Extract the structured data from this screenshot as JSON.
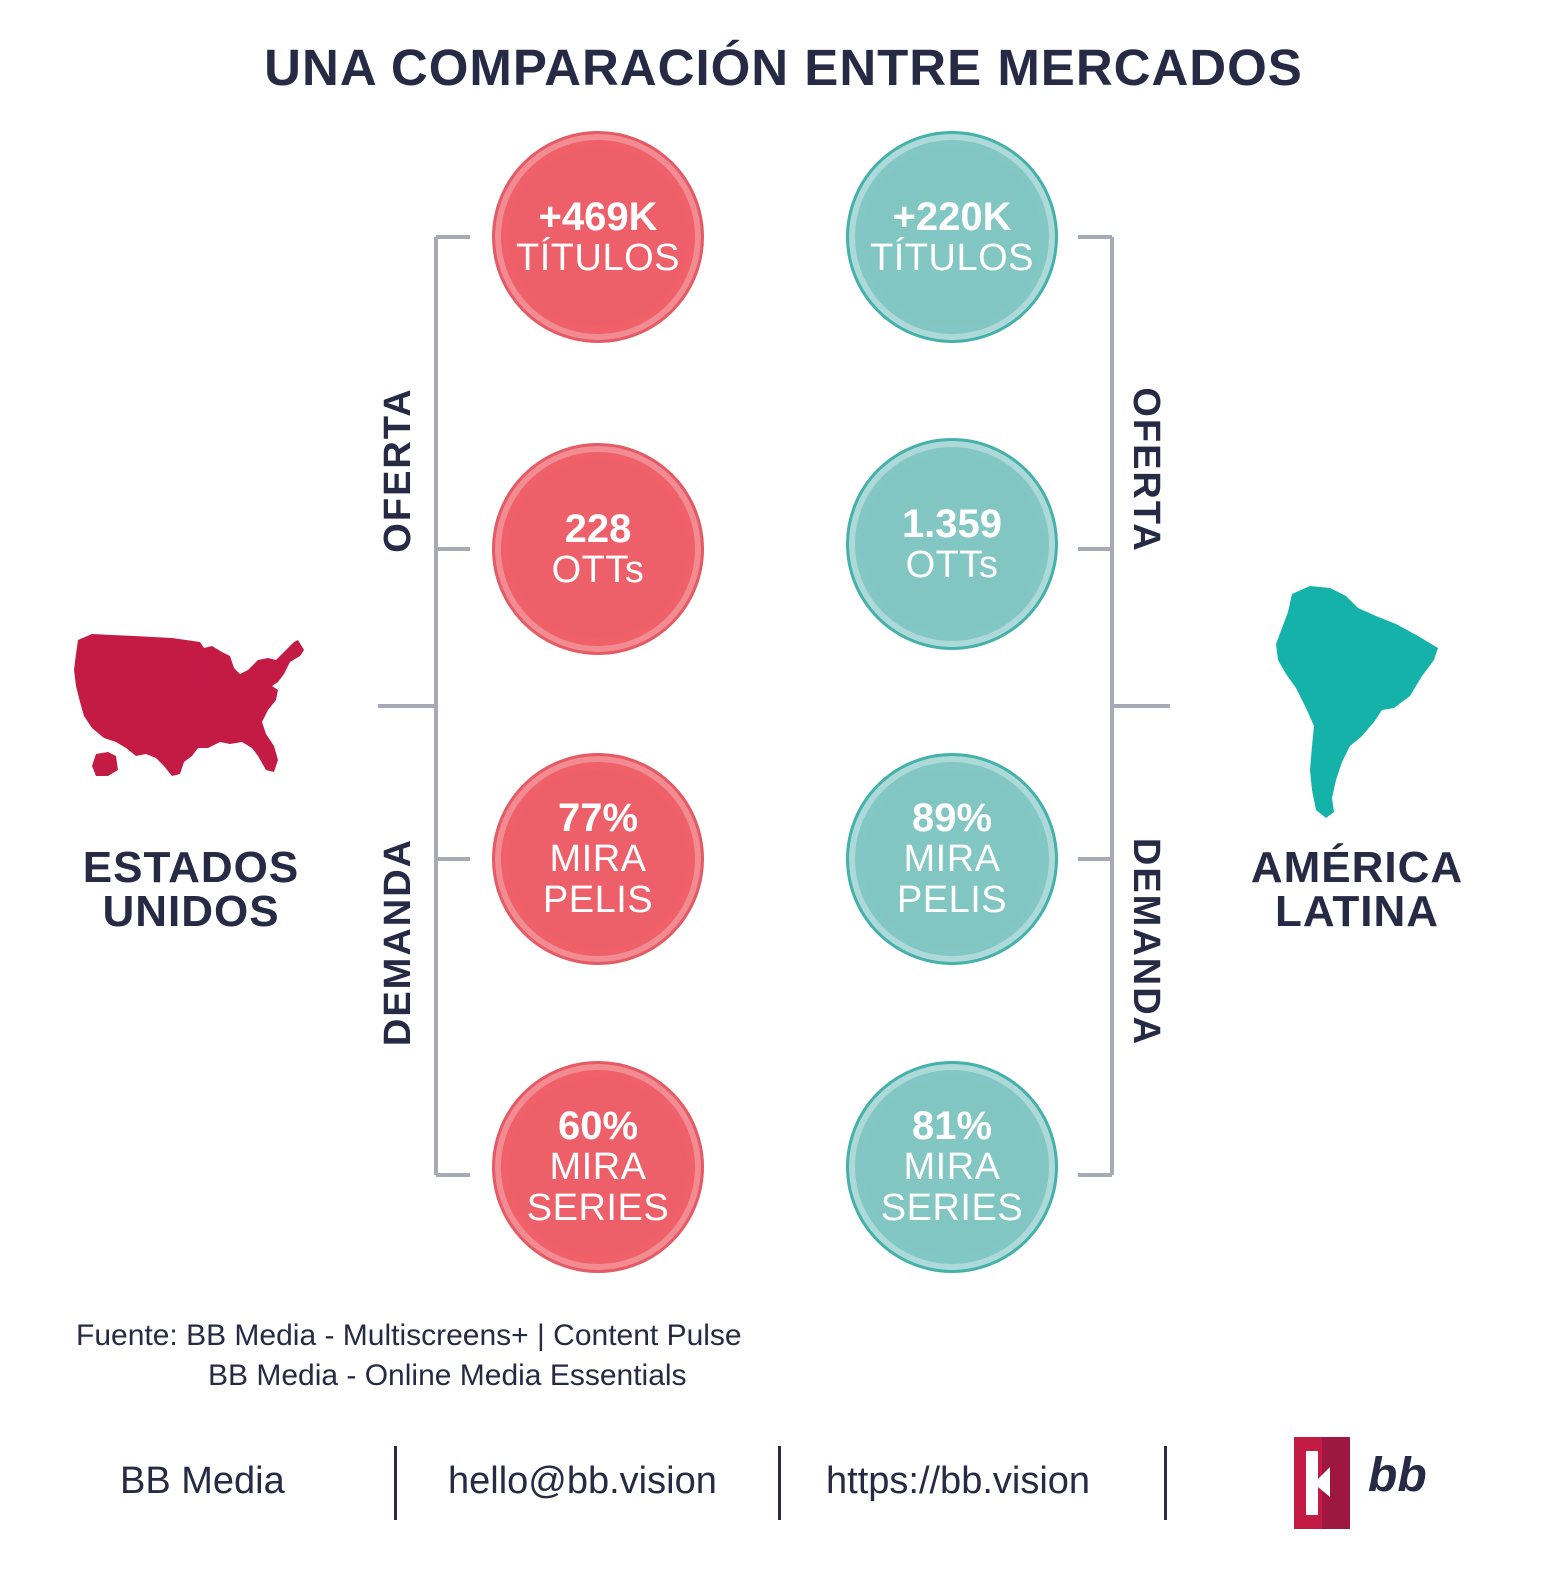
{
  "title": "UNA COMPARACIÓN ENTRE MERCADOS",
  "colors": {
    "us_accent": "#c41b45",
    "latam_accent": "#15b2aa",
    "us_circle": "#ed5f69",
    "latam_circle": "#81c6c2",
    "text": "#272a44",
    "bracket": "#a7a9b4"
  },
  "labels": {
    "oferta": "OFERTA",
    "demanda": "DEMANDA"
  },
  "us": {
    "name_line1": "ESTADOS",
    "name_line2": "UNIDOS",
    "map_icon": "usa-map-icon",
    "stats": [
      {
        "value": "+469K",
        "line1": "TÍTULOS",
        "line2": ""
      },
      {
        "value": "228",
        "line1": "OTTs",
        "line2": ""
      },
      {
        "value": "77%",
        "line1": "MIRA",
        "line2": "PELIS"
      },
      {
        "value": "60%",
        "line1": "MIRA",
        "line2": "SERIES"
      }
    ]
  },
  "latam": {
    "name_line1": "AMÉRICA",
    "name_line2": "LATINA",
    "map_icon": "south-america-map-icon",
    "stats": [
      {
        "value": "+220K",
        "line1": "TÍTULOS",
        "line2": ""
      },
      {
        "value": "1.359",
        "line1": "OTTs",
        "line2": ""
      },
      {
        "value": "89%",
        "line1": "MIRA",
        "line2": "PELIS"
      },
      {
        "value": "81%",
        "line1": "MIRA",
        "line2": "SERIES"
      }
    ]
  },
  "source": {
    "line1": "Fuente: BB Media - Multiscreens+ | Content Pulse",
    "line2": "BB Media - Online Media Essentials"
  },
  "footer": {
    "company": "BB Media",
    "email": "hello@bb.vision",
    "url": "https://bb.vision",
    "logo_text": "bb"
  }
}
